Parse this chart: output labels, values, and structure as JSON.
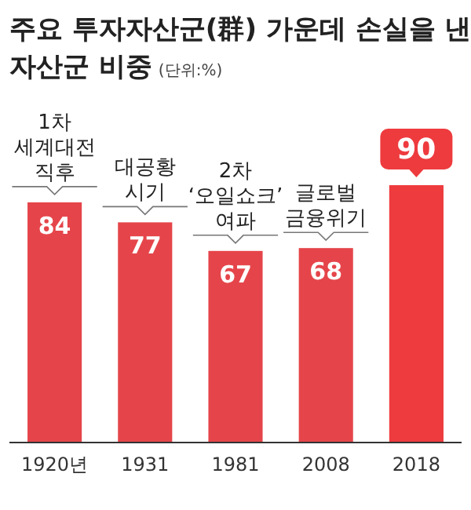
{
  "chart_data": {
    "type": "bar",
    "title": "주요 투자자산군(群) 가운데 손실을 낸 자산군 비중",
    "subtitle": "(단위:%)",
    "categories": [
      "1920년",
      "1931",
      "1981",
      "2008",
      "2018"
    ],
    "values": [
      84,
      77,
      67,
      68,
      90
    ],
    "colors": [
      "#e5454a",
      "#e5454a",
      "#e5454a",
      "#e5454a",
      "#ee3b3e"
    ],
    "data_labels": true,
    "annotations": [
      {
        "text": "1차\n세계대전\n직후",
        "x": "1920년",
        "y": 84
      },
      {
        "text": "대공황\n시기",
        "x": "1931",
        "y": 77
      },
      {
        "text": "2차\n‘오일쇼크’\n여파",
        "x": "1981",
        "y": 67
      },
      {
        "text": "글로벌\n금융위기",
        "x": "2008",
        "y": 68
      }
    ]
  }
}
